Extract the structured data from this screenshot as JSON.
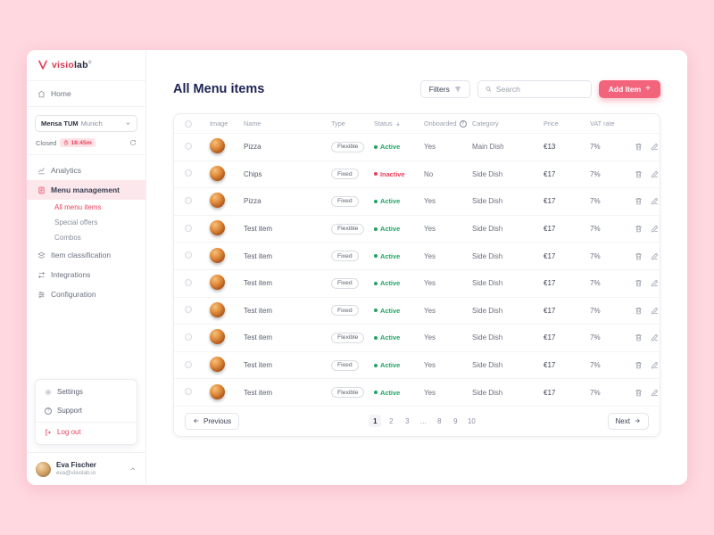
{
  "colors": {
    "accent": "#E8415C",
    "button": "#F2647C",
    "active": "#1FA463",
    "inactive": "#E8415C",
    "background": "#FFD8E0"
  },
  "brand": {
    "visio": "visio",
    "lab": "lab",
    "reg": "®"
  },
  "sidebar": {
    "home_label": "Home",
    "location": {
      "primary": "Mensa TUM",
      "secondary": "Munich"
    },
    "status": {
      "label": "Closed",
      "timer": "18:45m"
    },
    "nav": {
      "analytics": "Analytics",
      "menu_management": "Menu management",
      "all_menu_items": "All menu items",
      "special_offers": "Special offers",
      "combos": "Combos",
      "item_classification": "Item classification",
      "integrations": "Integrations",
      "configuration": "Configuration"
    },
    "menu_popup": {
      "settings": "Settings",
      "support": "Support",
      "logout": "Log out"
    },
    "user": {
      "name": "Eva Fischer",
      "email": "eva@visiolab.io"
    }
  },
  "header": {
    "title": "All Menu items",
    "filters": "Filters",
    "search_placeholder": "Search",
    "add_item": "Add Item"
  },
  "table": {
    "columns": {
      "image": "Image",
      "name": "Name",
      "type": "Type",
      "status": "Status",
      "onboarded": "Onboarded",
      "category": "Category",
      "price": "Price",
      "vat": "VAT rate"
    },
    "rows": [
      {
        "name": "Pizza",
        "type": "Flexible",
        "status": "Active",
        "onboarded": "Yes",
        "category": "Main Dish",
        "price": "€13",
        "vat": "7%"
      },
      {
        "name": "Chips",
        "type": "Fixed",
        "status": "Inactive",
        "onboarded": "No",
        "category": "Side Dish",
        "price": "€17",
        "vat": "7%"
      },
      {
        "name": "Pizza",
        "type": "Fixed",
        "status": "Active",
        "onboarded": "Yes",
        "category": "Side Dish",
        "price": "€17",
        "vat": "7%"
      },
      {
        "name": "Test item",
        "type": "Flexible",
        "status": "Active",
        "onboarded": "Yes",
        "category": "Side Dish",
        "price": "€17",
        "vat": "7%"
      },
      {
        "name": "Test item",
        "type": "Fixed",
        "status": "Active",
        "onboarded": "Yes",
        "category": "Side Dish",
        "price": "€17",
        "vat": "7%"
      },
      {
        "name": "Test item",
        "type": "Fixed",
        "status": "Active",
        "onboarded": "Yes",
        "category": "Side Dish",
        "price": "€17",
        "vat": "7%"
      },
      {
        "name": "Test item",
        "type": "Fixed",
        "status": "Active",
        "onboarded": "Yes",
        "category": "Side Dish",
        "price": "€17",
        "vat": "7%"
      },
      {
        "name": "Test item",
        "type": "Flexible",
        "status": "Active",
        "onboarded": "Yes",
        "category": "Side Dish",
        "price": "€17",
        "vat": "7%"
      },
      {
        "name": "Test item",
        "type": "Fixed",
        "status": "Active",
        "onboarded": "Yes",
        "category": "Side Dish",
        "price": "€17",
        "vat": "7%"
      },
      {
        "name": "Test item",
        "type": "Flexible",
        "status": "Active",
        "onboarded": "Yes",
        "category": "Side Dish",
        "price": "€17",
        "vat": "7%"
      }
    ]
  },
  "pagination": {
    "previous": "Previous",
    "next": "Next",
    "pages": [
      "1",
      "2",
      "3",
      "…",
      "8",
      "9",
      "10"
    ]
  }
}
